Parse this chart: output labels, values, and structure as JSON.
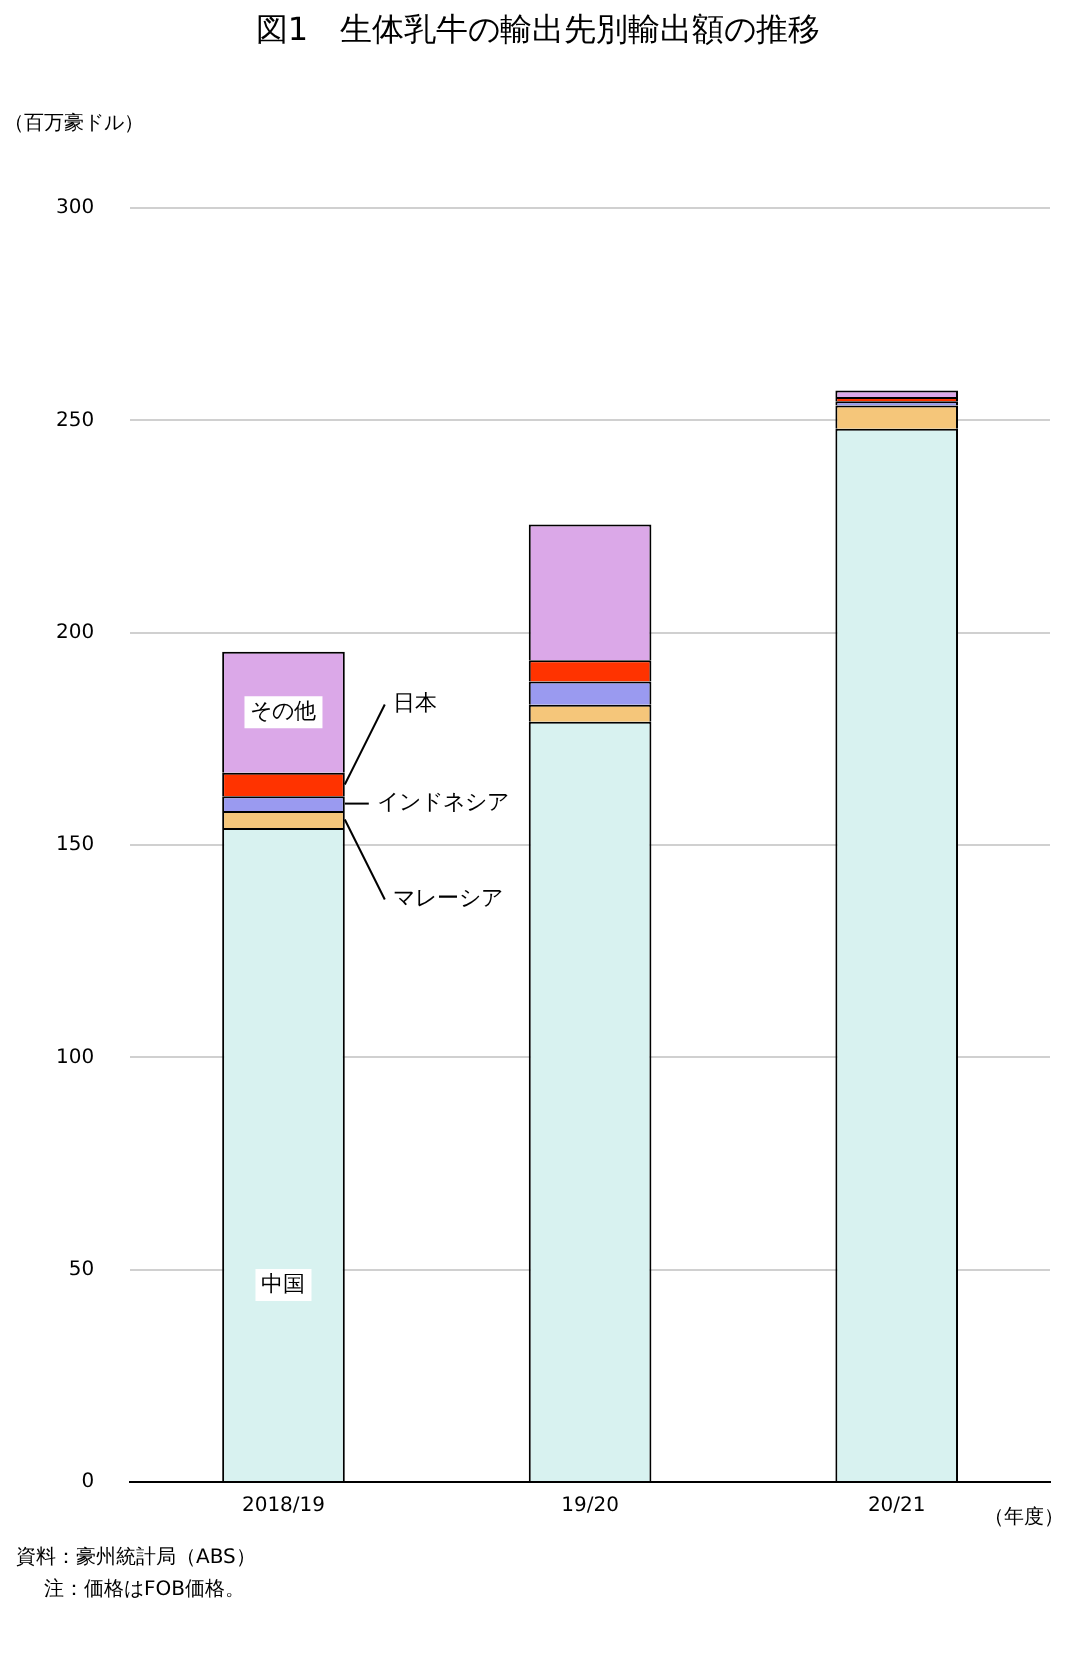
{
  "chart_data": {
    "type": "bar",
    "title": "図1　生体乳牛の輸出先別輸出額の推移",
    "ylabel": "（百万豪ドル）",
    "xlabel": "（年度）",
    "categories": [
      "2018/19",
      "19/20",
      "20/21"
    ],
    "stacked": true,
    "series": [
      {
        "name": "中国",
        "color": "#d8f2f0",
        "values": [
          154,
          179,
          248
        ]
      },
      {
        "name": "マレーシア",
        "color": "#f5c67a",
        "values": [
          4,
          4,
          5.5
        ]
      },
      {
        "name": "インドネシア",
        "color": "#9a9af0",
        "values": [
          3.5,
          5.5,
          1
        ]
      },
      {
        "name": "日本",
        "color": "#ff3300",
        "values": [
          5.5,
          5,
          1
        ]
      },
      {
        "name": "その他",
        "color": "#dba8e8",
        "values": [
          28.5,
          32,
          1.5
        ]
      }
    ],
    "ylim": [
      0,
      300
    ],
    "yticks": [
      0,
      50,
      100,
      150,
      200,
      250,
      300
    ],
    "grid": "y",
    "legend": false,
    "annotations": [
      "資料：豪州統計局（ABS）",
      "注：価格はFOB価格。"
    ]
  }
}
